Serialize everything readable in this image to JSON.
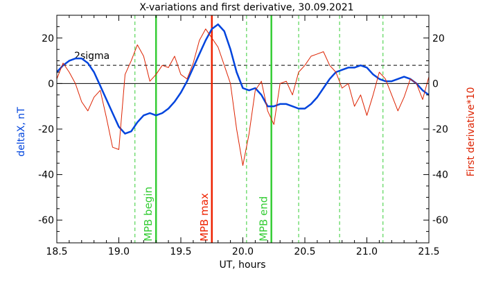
{
  "chart_data": {
    "type": "line",
    "title": "X-variations and first derivative, 30.09.2021",
    "xlabel": "UT, hours",
    "ylabel_left": "deltaX, nT",
    "ylabel_right": "First derivative*10",
    "xlim": [
      18.5,
      21.5
    ],
    "ylim": [
      -70,
      30
    ],
    "x_ticks": [
      18.5,
      19.0,
      19.5,
      20.0,
      20.5,
      21.0,
      21.5
    ],
    "x_tick_labels": [
      "18.5",
      "19.0",
      "19.5",
      "20.0",
      "20.5",
      "21.0",
      "21.5"
    ],
    "y_ticks": [
      -60,
      -40,
      -20,
      0,
      20
    ],
    "y_tick_labels": [
      "-60",
      "-40",
      "-20",
      "0",
      "20"
    ],
    "grid": false,
    "series": [
      {
        "role": "deltaX",
        "color": "#0044dd",
        "x": [
          18.5,
          18.55,
          18.6,
          18.65,
          18.7,
          18.75,
          18.8,
          18.85,
          18.9,
          18.95,
          19.0,
          19.05,
          19.1,
          19.15,
          19.2,
          19.25,
          19.3,
          19.35,
          19.4,
          19.45,
          19.5,
          19.55,
          19.6,
          19.65,
          19.7,
          19.75,
          19.8,
          19.85,
          19.9,
          19.95,
          20.0,
          20.05,
          20.1,
          20.15,
          20.2,
          20.25,
          20.3,
          20.35,
          20.4,
          20.45,
          20.5,
          20.55,
          20.6,
          20.65,
          20.7,
          20.75,
          20.8,
          20.85,
          20.9,
          20.95,
          21.0,
          21.05,
          21.1,
          21.15,
          21.2,
          21.25,
          21.3,
          21.35,
          21.4,
          21.45,
          21.5
        ],
        "y": [
          5,
          8,
          10,
          11,
          11,
          9,
          5,
          -1,
          -7,
          -13,
          -19,
          -22,
          -21,
          -17,
          -14,
          -13,
          -14,
          -13,
          -11,
          -8,
          -4,
          1,
          7,
          13,
          19,
          24,
          26,
          23,
          15,
          5,
          -2,
          -3,
          -2,
          -5,
          -10,
          -10,
          -9,
          -9,
          -10,
          -11,
          -11,
          -9,
          -6,
          -2,
          2,
          5,
          6,
          7,
          7,
          8,
          7,
          4,
          2,
          1,
          1,
          2,
          3,
          2,
          0,
          -3,
          -5
        ]
      },
      {
        "role": "first-derivative",
        "color": "#dd2200",
        "x": [
          18.5,
          18.55,
          18.6,
          18.65,
          18.7,
          18.75,
          18.8,
          18.85,
          18.9,
          18.95,
          19.0,
          19.05,
          19.1,
          19.15,
          19.2,
          19.25,
          19.3,
          19.35,
          19.4,
          19.45,
          19.5,
          19.55,
          19.6,
          19.65,
          19.7,
          19.75,
          19.8,
          19.85,
          19.9,
          19.95,
          20.0,
          20.05,
          20.1,
          20.15,
          20.2,
          20.25,
          20.3,
          20.35,
          20.4,
          20.45,
          20.5,
          20.55,
          20.6,
          20.65,
          20.7,
          20.75,
          20.8,
          20.85,
          20.9,
          20.95,
          21.0,
          21.05,
          21.1,
          21.15,
          21.2,
          21.25,
          21.3,
          21.35,
          21.4,
          21.45,
          21.5
        ],
        "y": [
          2,
          9,
          5,
          0,
          -8,
          -12,
          -6,
          -3,
          -15,
          -28,
          -29,
          4,
          10,
          17,
          12,
          1,
          4,
          8,
          7,
          12,
          4,
          2,
          9,
          19,
          24,
          20,
          16,
          8,
          0,
          -20,
          -36,
          -22,
          -3,
          1,
          -12,
          -18,
          0,
          1,
          -5,
          5,
          8,
          12,
          13,
          14,
          8,
          5,
          -2,
          0,
          -10,
          -5,
          -14,
          -5,
          5,
          2,
          -5,
          -12,
          -6,
          2,
          0,
          -7,
          3
        ]
      }
    ],
    "threshold_lines": [
      {
        "label": "2sigma",
        "y": 8,
        "style": "dashed"
      },
      {
        "label": "",
        "y": 0,
        "style": "solid"
      }
    ],
    "vertical_markers": [
      {
        "x": 19.13,
        "style": "dashed",
        "color": "#33cc33",
        "label": ""
      },
      {
        "x": 19.3,
        "style": "solid",
        "color": "#33cc33",
        "label": "MPB begin"
      },
      {
        "x": 19.75,
        "style": "solid",
        "color": "#ee2200",
        "label": "MPB max"
      },
      {
        "x": 20.03,
        "style": "dashed",
        "color": "#33cc33",
        "label": ""
      },
      {
        "x": 20.23,
        "style": "solid",
        "color": "#33cc33",
        "label": "MPB end"
      },
      {
        "x": 20.45,
        "style": "dashed",
        "color": "#33cc33",
        "label": ""
      },
      {
        "x": 20.78,
        "style": "dashed",
        "color": "#33cc33",
        "label": ""
      },
      {
        "x": 21.13,
        "style": "dashed",
        "color": "#33cc33",
        "label": ""
      }
    ]
  }
}
